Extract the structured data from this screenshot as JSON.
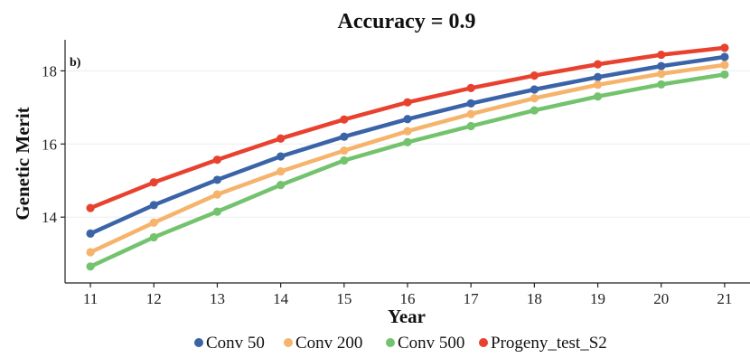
{
  "chart_data": {
    "type": "line",
    "title": "Accuracy = 0.9",
    "panel_label": "b)",
    "xlabel": "Year",
    "ylabel": "Genetic Merit",
    "x": [
      11,
      12,
      13,
      14,
      15,
      16,
      17,
      18,
      19,
      20,
      21
    ],
    "xlim": [
      10.6,
      21.4
    ],
    "ylim": [
      12.2,
      18.85
    ],
    "x_ticks": [
      11,
      12,
      13,
      14,
      15,
      16,
      17,
      18,
      19,
      20,
      21
    ],
    "y_ticks": [
      14,
      16,
      18
    ],
    "grid": "horizontal, faint",
    "legend_position": "bottom",
    "series": [
      {
        "name": "Conv 50",
        "color": "#3A63A8",
        "values": [
          13.55,
          14.33,
          15.02,
          15.66,
          16.2,
          16.68,
          17.11,
          17.49,
          17.83,
          18.13,
          18.38
        ]
      },
      {
        "name": "Conv 200",
        "color": "#F6B36B",
        "values": [
          13.04,
          13.85,
          14.62,
          15.25,
          15.82,
          16.35,
          16.82,
          17.25,
          17.62,
          17.92,
          18.16
        ]
      },
      {
        "name": "Conv 500",
        "color": "#73C36E",
        "values": [
          12.65,
          13.45,
          14.15,
          14.88,
          15.55,
          16.05,
          16.49,
          16.92,
          17.3,
          17.63,
          17.9
        ]
      },
      {
        "name": "Progeny_test_S2",
        "color": "#E8412F",
        "values": [
          14.25,
          14.95,
          15.57,
          16.15,
          16.67,
          17.14,
          17.53,
          17.87,
          18.18,
          18.44,
          18.63
        ]
      }
    ]
  }
}
